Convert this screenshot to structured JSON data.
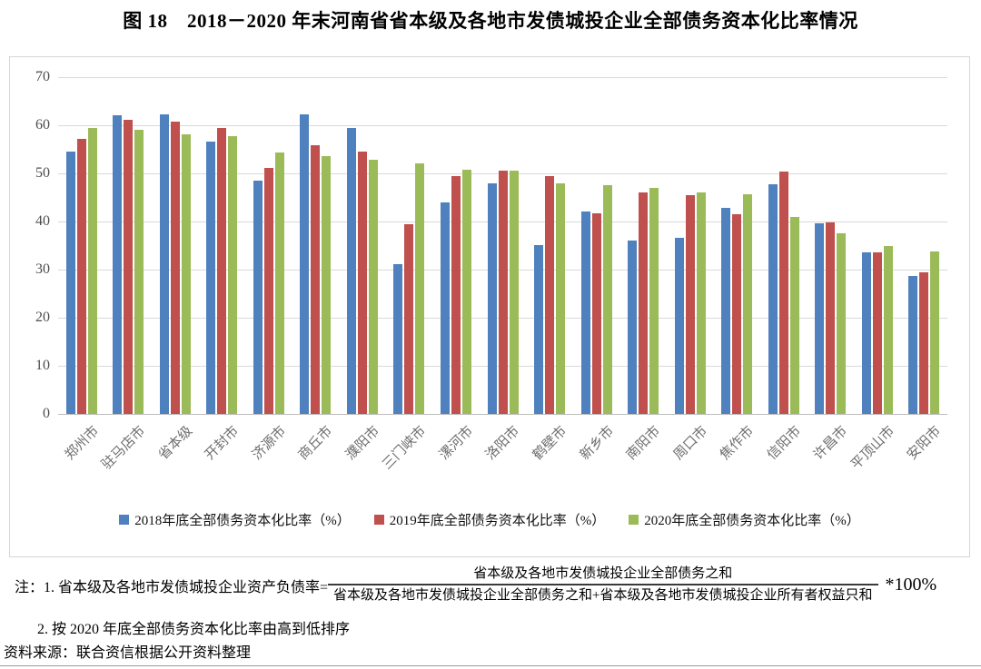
{
  "page": {
    "title": "图 18　2018－2020 年末河南省省本级及各地市发债城投企业全部债务资本化比率情况",
    "source": "资料来源：联合资信根据公开资料整理"
  },
  "notes": {
    "line1_label": "注：1. 省本级及各地市发债城投企业资产负债率=",
    "fraction_numerator": "省本级及各地市发债城投企业全部债务之和",
    "fraction_denominator": "省本级及各地市发债城投企业全部债务之和+省本级及各地市发债城投企业所有者权益只和",
    "multiplier": "*100%",
    "line2": "2. 按 2020 年底全部债务资本化比率由高到低排序"
  },
  "chart_data": {
    "type": "bar",
    "title": "图 18　2018－2020 年末河南省省本级及各地市发债城投企业全部债务资本化比率情况",
    "categories": [
      "郑州市",
      "驻马店市",
      "省本级",
      "开封市",
      "济源市",
      "商丘市",
      "濮阳市",
      "三门峡市",
      "漯河市",
      "洛阳市",
      "鹤壁市",
      "新乡市",
      "南阳市",
      "周口市",
      "焦作市",
      "信阳市",
      "许昌市",
      "平顶山市",
      "安阳市"
    ],
    "series": [
      {
        "name": "2018年底全部债务资本化比率（%）",
        "color": "#4E81BD",
        "values": [
          54.5,
          62.0,
          62.2,
          56.6,
          48.5,
          62.2,
          59.4,
          31.2,
          43.9,
          47.9,
          35.1,
          42.0,
          36.1,
          36.7,
          42.8,
          47.7,
          39.7,
          33.5,
          28.7
        ]
      },
      {
        "name": "2019年底全部债务资本化比率（%）",
        "color": "#C0504D",
        "values": [
          57.2,
          61.2,
          60.8,
          59.4,
          51.2,
          55.8,
          54.6,
          39.5,
          49.4,
          50.5,
          49.4,
          41.7,
          46.1,
          45.5,
          41.6,
          50.3,
          39.9,
          33.5,
          29.4
        ]
      },
      {
        "name": "2020年底全部债务资本化比率（%）",
        "color": "#9BBB59",
        "values": [
          59.5,
          59.0,
          58.2,
          57.7,
          54.3,
          53.5,
          52.8,
          52.0,
          50.8,
          50.6,
          48.0,
          47.5,
          46.9,
          46.0,
          45.6,
          40.9,
          37.5,
          35.0,
          33.7
        ]
      }
    ],
    "xlabel": "",
    "ylabel": "",
    "ylim": [
      0,
      70
    ],
    "yticks": [
      0,
      10,
      20,
      30,
      40,
      50,
      60,
      70
    ],
    "grid": true,
    "legend_position": "bottom-inside",
    "sort_note": "按2020年底值由高到低排序"
  }
}
